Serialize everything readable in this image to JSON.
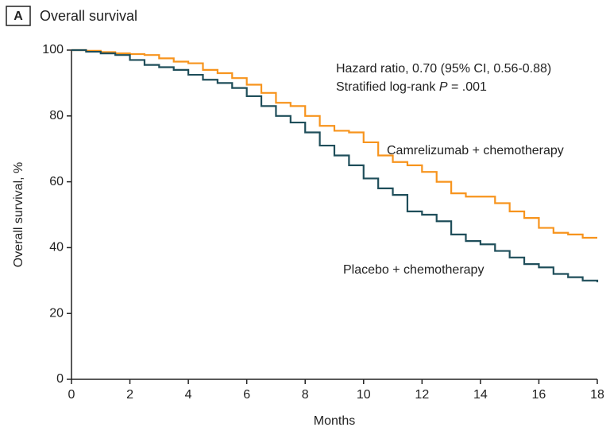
{
  "chart_data": {
    "type": "step",
    "panel": "A",
    "title": "Overall survival",
    "annotation": "Hazard ratio, 0.70 (95% CI, 0.56-0.88)",
    "annotation2": [
      "Stratified log-rank ",
      "P",
      " = .001"
    ],
    "xlabel": "Months",
    "ylabel": "Overall survival, %",
    "xlim": [
      0,
      18
    ],
    "xticks": [
      0,
      2,
      4,
      6,
      8,
      10,
      12,
      14,
      16,
      18
    ],
    "ylim": [
      0,
      100
    ],
    "yticks": [
      0,
      20,
      40,
      60,
      80,
      100
    ],
    "x": [
      0,
      0.5,
      1,
      1.5,
      2,
      2.5,
      3,
      3.5,
      4,
      4.5,
      5,
      5.5,
      6,
      6.5,
      7,
      7.5,
      8,
      8.5,
      9,
      9.5,
      10,
      10.5,
      11,
      11.5,
      12,
      12.5,
      13,
      13.5,
      14,
      14.5,
      15,
      15.5,
      16,
      16.5,
      17,
      17.5,
      18
    ],
    "series": [
      {
        "name": "Camrelizumab + chemotherapy",
        "color": "#f7941d",
        "values": [
          100,
          99.8,
          99.4,
          99,
          98.8,
          98.5,
          97.5,
          96.5,
          96,
          94,
          93,
          91.5,
          89.5,
          87,
          84,
          83,
          80,
          77,
          75.5,
          75,
          72,
          68,
          66,
          65,
          63,
          60,
          56.5,
          55.5,
          55.5,
          53.5,
          51,
          49,
          46,
          44.5,
          44,
          43,
          43
        ]
      },
      {
        "name": "Placebo + chemotherapy",
        "color": "#1f4e5a",
        "values": [
          100,
          99.5,
          99,
          98.5,
          97,
          95.5,
          94.8,
          94,
          92.5,
          91,
          90,
          88.5,
          86,
          83,
          80,
          78,
          75,
          71,
          68,
          65,
          61,
          58,
          56,
          51,
          50,
          48,
          44,
          42,
          41,
          39,
          37,
          35,
          34,
          32,
          31,
          30,
          29.5
        ]
      }
    ]
  }
}
